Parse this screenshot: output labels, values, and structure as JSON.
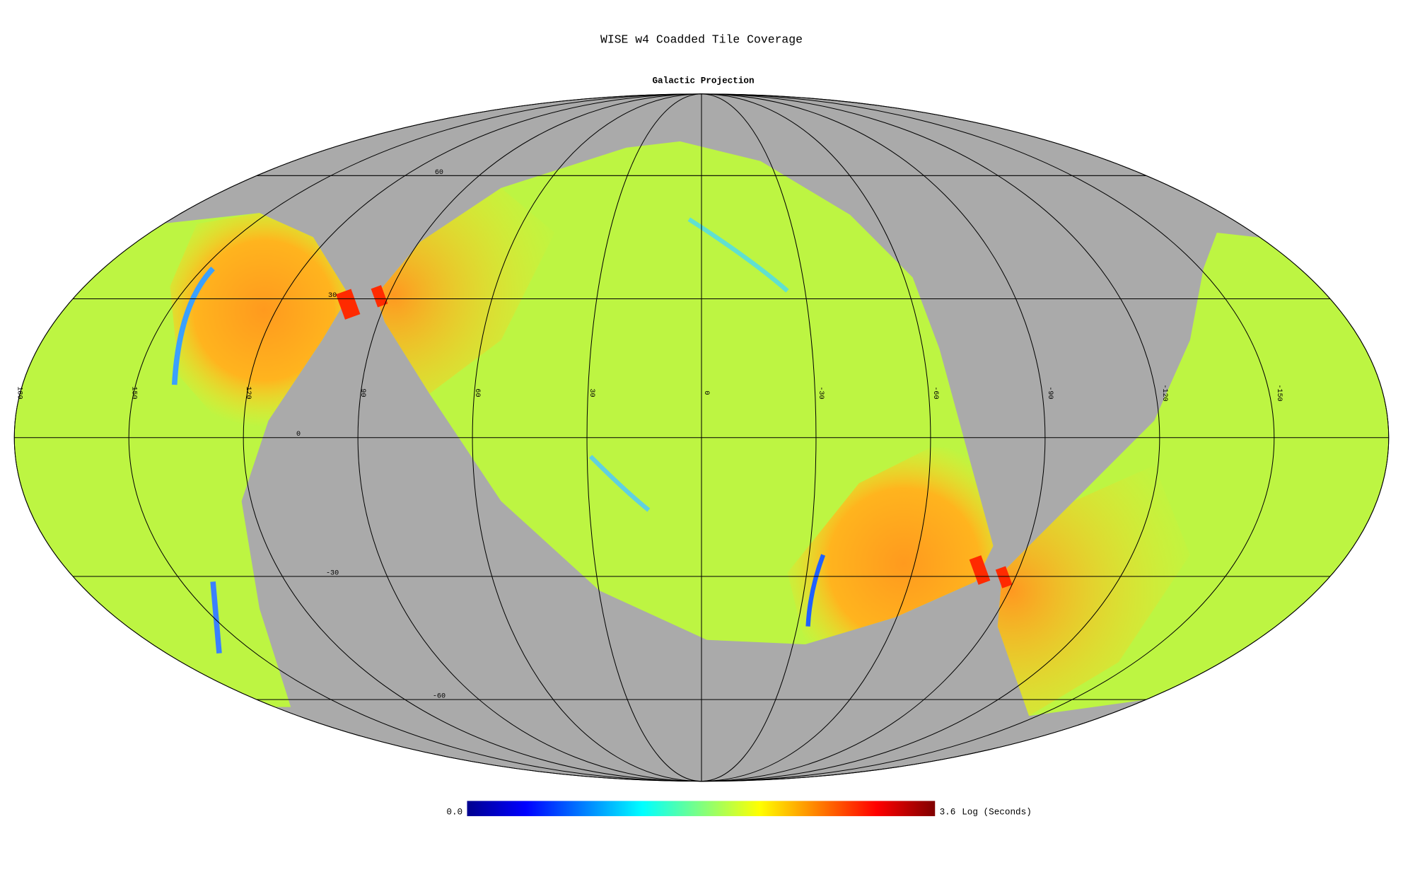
{
  "header": {
    "title": "WISE w4 Coadded Tile Coverage",
    "subtitle": "Galactic Projection"
  },
  "map": {
    "longitude_labels": [
      "180",
      "150",
      "120",
      "90",
      "60",
      "30",
      "0",
      "-30",
      "-60",
      "-90",
      "-120",
      "-150"
    ],
    "latitude_labels": [
      "60",
      "30",
      "0",
      "-30",
      "-60"
    ]
  },
  "colorbar": {
    "min_label": "0.0",
    "max_label": "3.6",
    "unit": "Log (Seconds)"
  }
}
